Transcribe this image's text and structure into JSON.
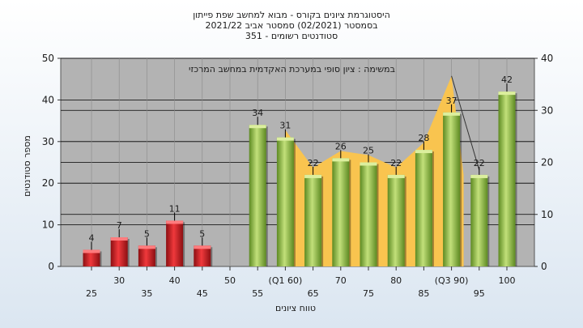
{
  "chart_data": {
    "type": "bar",
    "title_lines": [
      "היסטוגרמת ציונים בקורס - מבוא למחשב שפת פייתון",
      "בסמסטר  (02/2021)  סמסטר אביב 2021/22",
      "סטודנטים רשומים - 351"
    ],
    "annotation": "במשימה : ציון סופי במערכת האקדמית במחשב המרכזי",
    "xlabel": "טווח ציונים",
    "ylabel": "מספר סטודנטים",
    "ylim": [
      0,
      50
    ],
    "y_ticks": [
      0,
      10,
      20,
      30,
      40,
      50
    ],
    "y2lim": [
      0,
      40
    ],
    "y2_ticks": [
      0,
      10,
      20,
      30,
      40
    ],
    "categories": [
      "25",
      "30",
      "35",
      "40",
      "45",
      "50",
      "55",
      "(Q1 60)",
      "65",
      "70",
      "75",
      "80",
      "85",
      "(Q3 90)",
      "95",
      "100"
    ],
    "values": [
      4,
      7,
      5,
      11,
      5,
      null,
      34,
      31,
      22,
      26,
      25,
      22,
      28,
      37,
      22,
      42
    ],
    "data_labels": [
      "4",
      "7",
      "5",
      "11",
      "5",
      "",
      "34",
      "31",
      "22",
      "26",
      "25",
      "22",
      "28",
      "37",
      "22",
      "42"
    ],
    "bar_colors": [
      "red",
      "red",
      "red",
      "red",
      "red",
      "",
      "green",
      "green",
      "green",
      "green",
      "green",
      "green",
      "green",
      "green",
      "green",
      "green"
    ],
    "area": {
      "from_index": 7,
      "to_index": 13,
      "color": "#f9c44f"
    },
    "colors": {
      "plot_bg": "#b3b3b3",
      "red_bar": "#d81f24",
      "green_bar": "#8fbf3f",
      "area": "#f9c44f"
    },
    "grid": true
  }
}
